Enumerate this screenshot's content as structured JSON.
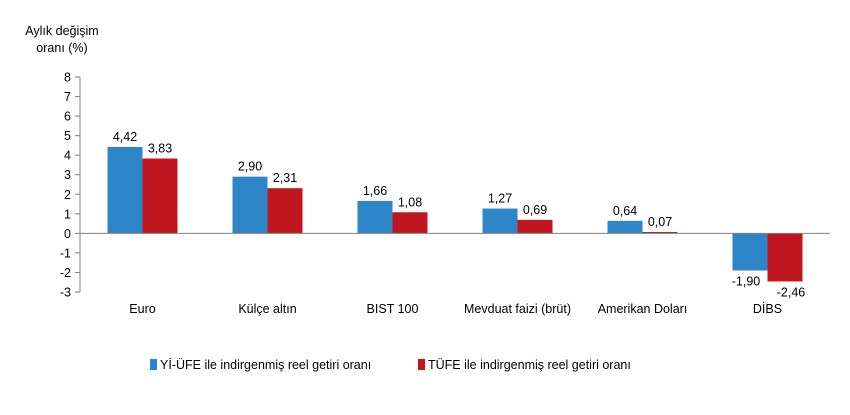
{
  "chart_data": {
    "type": "bar",
    "ylabel_lines": [
      "Aylık değişim",
      "oranı (%)"
    ],
    "categories": [
      "Euro",
      "Külçe altın",
      "BIST 100",
      "Mevduat faizi (brüt)",
      "Amerikan Doları",
      "DİBS"
    ],
    "series": [
      {
        "name": "Yİ-ÜFE ile indirgenmiş reel getiri oranı",
        "color": "#2E86C8",
        "values": [
          4.42,
          2.9,
          1.66,
          1.27,
          0.64,
          -1.9
        ],
        "labels": [
          "4,42",
          "2,90",
          "1,66",
          "1,27",
          "0,64",
          "-1,90"
        ]
      },
      {
        "name": "TÜFE ile indirgenmiş reel getiri oranı",
        "color": "#C0161F",
        "values": [
          3.83,
          2.31,
          1.08,
          0.69,
          0.07,
          -2.46
        ],
        "labels": [
          "3,83",
          "2,31",
          "1,08",
          "0,69",
          "0,07",
          "-2,46"
        ]
      }
    ],
    "ylim": [
      -3,
      8
    ],
    "yticks": [
      -3,
      -2,
      -1,
      0,
      1,
      2,
      3,
      4,
      5,
      6,
      7,
      8
    ],
    "grid": false,
    "legend_position": "bottom-center"
  }
}
